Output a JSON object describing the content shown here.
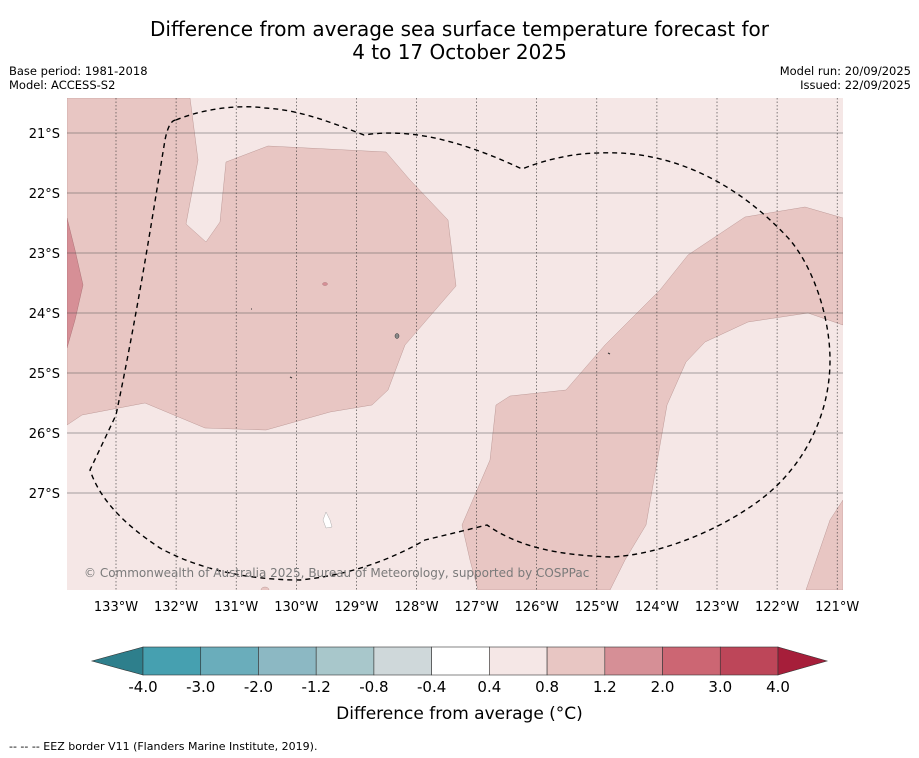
{
  "title": {
    "line1": "Difference from average sea surface temperature forecast for",
    "line2": "4 to 17 October 2025"
  },
  "meta_left": {
    "base_period": "Base period: 1981-2018",
    "model": "Model: ACCESS-S2"
  },
  "meta_right": {
    "model_run": "Model run: 20/09/2025",
    "issued": "Issued: 22/09/2025"
  },
  "map": {
    "lat_labels": [
      "21°S",
      "22°S",
      "23°S",
      "24°S",
      "25°S",
      "26°S",
      "27°S"
    ],
    "lon_labels": [
      "133°W",
      "132°W",
      "131°W",
      "130°W",
      "129°W",
      "128°W",
      "127°W",
      "126°W",
      "125°W",
      "124°W",
      "123°W",
      "122°W",
      "121°W"
    ],
    "copyright": "© Commonwealth of Australia 2025, Bureau of Meteorology, supported by COSPPac"
  },
  "colorbar": {
    "ticks": [
      "-4.0",
      "-3.0",
      "-2.0",
      "-1.2",
      "-0.8",
      "-0.4",
      "0.4",
      "0.8",
      "1.2",
      "2.0",
      "3.0",
      "4.0"
    ],
    "colors": [
      "#2e7f8c",
      "#46a0b0",
      "#6aadbb",
      "#8cb8c3",
      "#a8c7cb",
      "#cfd8da",
      "#ffffff",
      "#f5e7e6",
      "#e8c6c3",
      "#d68f96",
      "#cc6673",
      "#bd4659",
      "#a61e3a"
    ],
    "label": "Difference from average (°C)"
  },
  "footnote": "--  --  -- EEZ border V11 (Flanders Marine Institute, 2019)."
}
